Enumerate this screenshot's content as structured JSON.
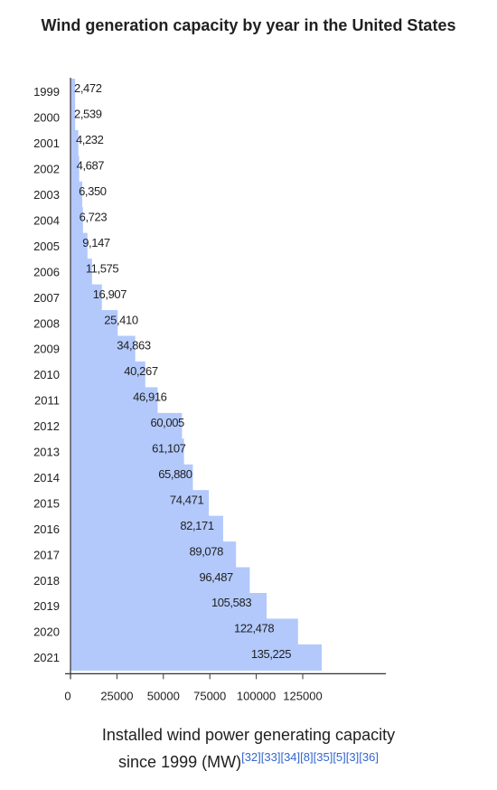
{
  "chart_data": {
    "type": "bar",
    "orientation": "horizontal",
    "title": "Wind generation capacity by year in the United States",
    "categories": [
      "1999",
      "2000",
      "2001",
      "2002",
      "2003",
      "2004",
      "2005",
      "2006",
      "2007",
      "2008",
      "2009",
      "2010",
      "2011",
      "2012",
      "2013",
      "2014",
      "2015",
      "2016",
      "2017",
      "2018",
      "2019",
      "2020",
      "2021"
    ],
    "values": [
      2472,
      2539,
      4232,
      4687,
      6350,
      6723,
      9147,
      11575,
      16907,
      25410,
      34863,
      40267,
      46916,
      60005,
      61107,
      65880,
      74471,
      82171,
      89078,
      96487,
      105583,
      122478,
      135225
    ],
    "value_labels": [
      "2,472",
      "2,539",
      "4,232",
      "4,687",
      "6,350",
      "6,723",
      "9,147",
      "11,575",
      "16,907",
      "25,410",
      "34,863",
      "40,267",
      "46,916",
      "60,005",
      "61,107",
      "65,880",
      "74,471",
      "82,171",
      "89,078",
      "96,487",
      "105,583",
      "122,478",
      "135,225"
    ],
    "xticks": [
      "0",
      "25000",
      "50000",
      "75000",
      "100000",
      "125000"
    ],
    "xtick_values": [
      0,
      25000,
      50000,
      75000,
      100000,
      125000
    ],
    "xlim": [
      0,
      140000
    ],
    "xlabel": "",
    "ylabel": "",
    "bar_color": "#b3c9fc",
    "grid": false,
    "legend": "none"
  },
  "caption": {
    "text": "Installed wind power generating capacity since 1999 (MW)",
    "line1": "Installed wind power generating capacity",
    "line2": "since 1999 (MW)",
    "refs": [
      "[32]",
      "[33]",
      "[34]",
      "[8]",
      "[35]",
      "[5]",
      "[3]",
      "[36]"
    ],
    "ref_color": "#3366cc"
  }
}
